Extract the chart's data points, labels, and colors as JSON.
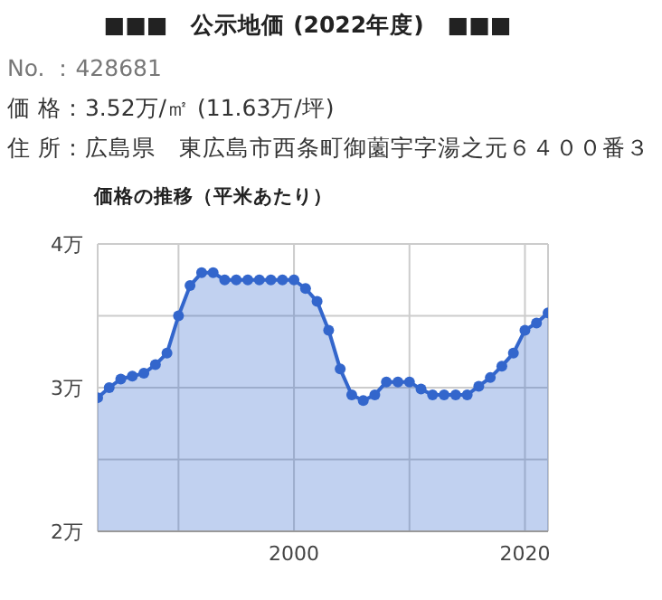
{
  "chart_data": {
    "type": "area",
    "title": "■■■　公示地価 (2022年度)　■■■",
    "subtitle": "価格の推移（平米あたり）",
    "annotations": [
      "No. ：428681",
      "価 格：3.52万/㎡ (11.63万/坪)",
      "住 所：広島県　東広島市西条町御薗宇字湯之元６４００番３"
    ],
    "x": [
      1983,
      1984,
      1985,
      1986,
      1987,
      1988,
      1989,
      1990,
      1991,
      1992,
      1993,
      1994,
      1995,
      1996,
      1997,
      1998,
      1999,
      2000,
      2001,
      2002,
      2003,
      2004,
      2005,
      2006,
      2007,
      2008,
      2009,
      2010,
      2011,
      2012,
      2013,
      2014,
      2015,
      2016,
      2017,
      2018,
      2019,
      2020,
      2021,
      2022
    ],
    "series": [
      {
        "color": "#3366cc",
        "values": [
          2.93,
          3.0,
          3.06,
          3.08,
          3.1,
          3.16,
          3.24,
          3.5,
          3.71,
          3.8,
          3.8,
          3.75,
          3.75,
          3.75,
          3.75,
          3.75,
          3.75,
          3.75,
          3.69,
          3.6,
          3.4,
          3.13,
          2.95,
          2.91,
          2.95,
          3.04,
          3.04,
          3.04,
          2.99,
          2.95,
          2.95,
          2.95,
          2.95,
          3.01,
          3.07,
          3.15,
          3.24,
          3.4,
          3.45,
          3.52
        ]
      }
    ],
    "xlim": [
      1983,
      2022
    ],
    "xticks": [
      {
        "value": 1990,
        "label": null
      },
      2000,
      {
        "value": 2010,
        "label": null
      },
      2020
    ],
    "ylim": [
      2,
      4
    ],
    "yticks": [
      {
        "value": 2,
        "label": "2万"
      },
      {
        "value": 2.5,
        "label": null
      },
      {
        "value": 3,
        "label": "3万"
      },
      {
        "value": 3.5,
        "label": null
      },
      {
        "value": 4,
        "label": "4万"
      }
    ],
    "grid": true,
    "marker": "circle"
  }
}
